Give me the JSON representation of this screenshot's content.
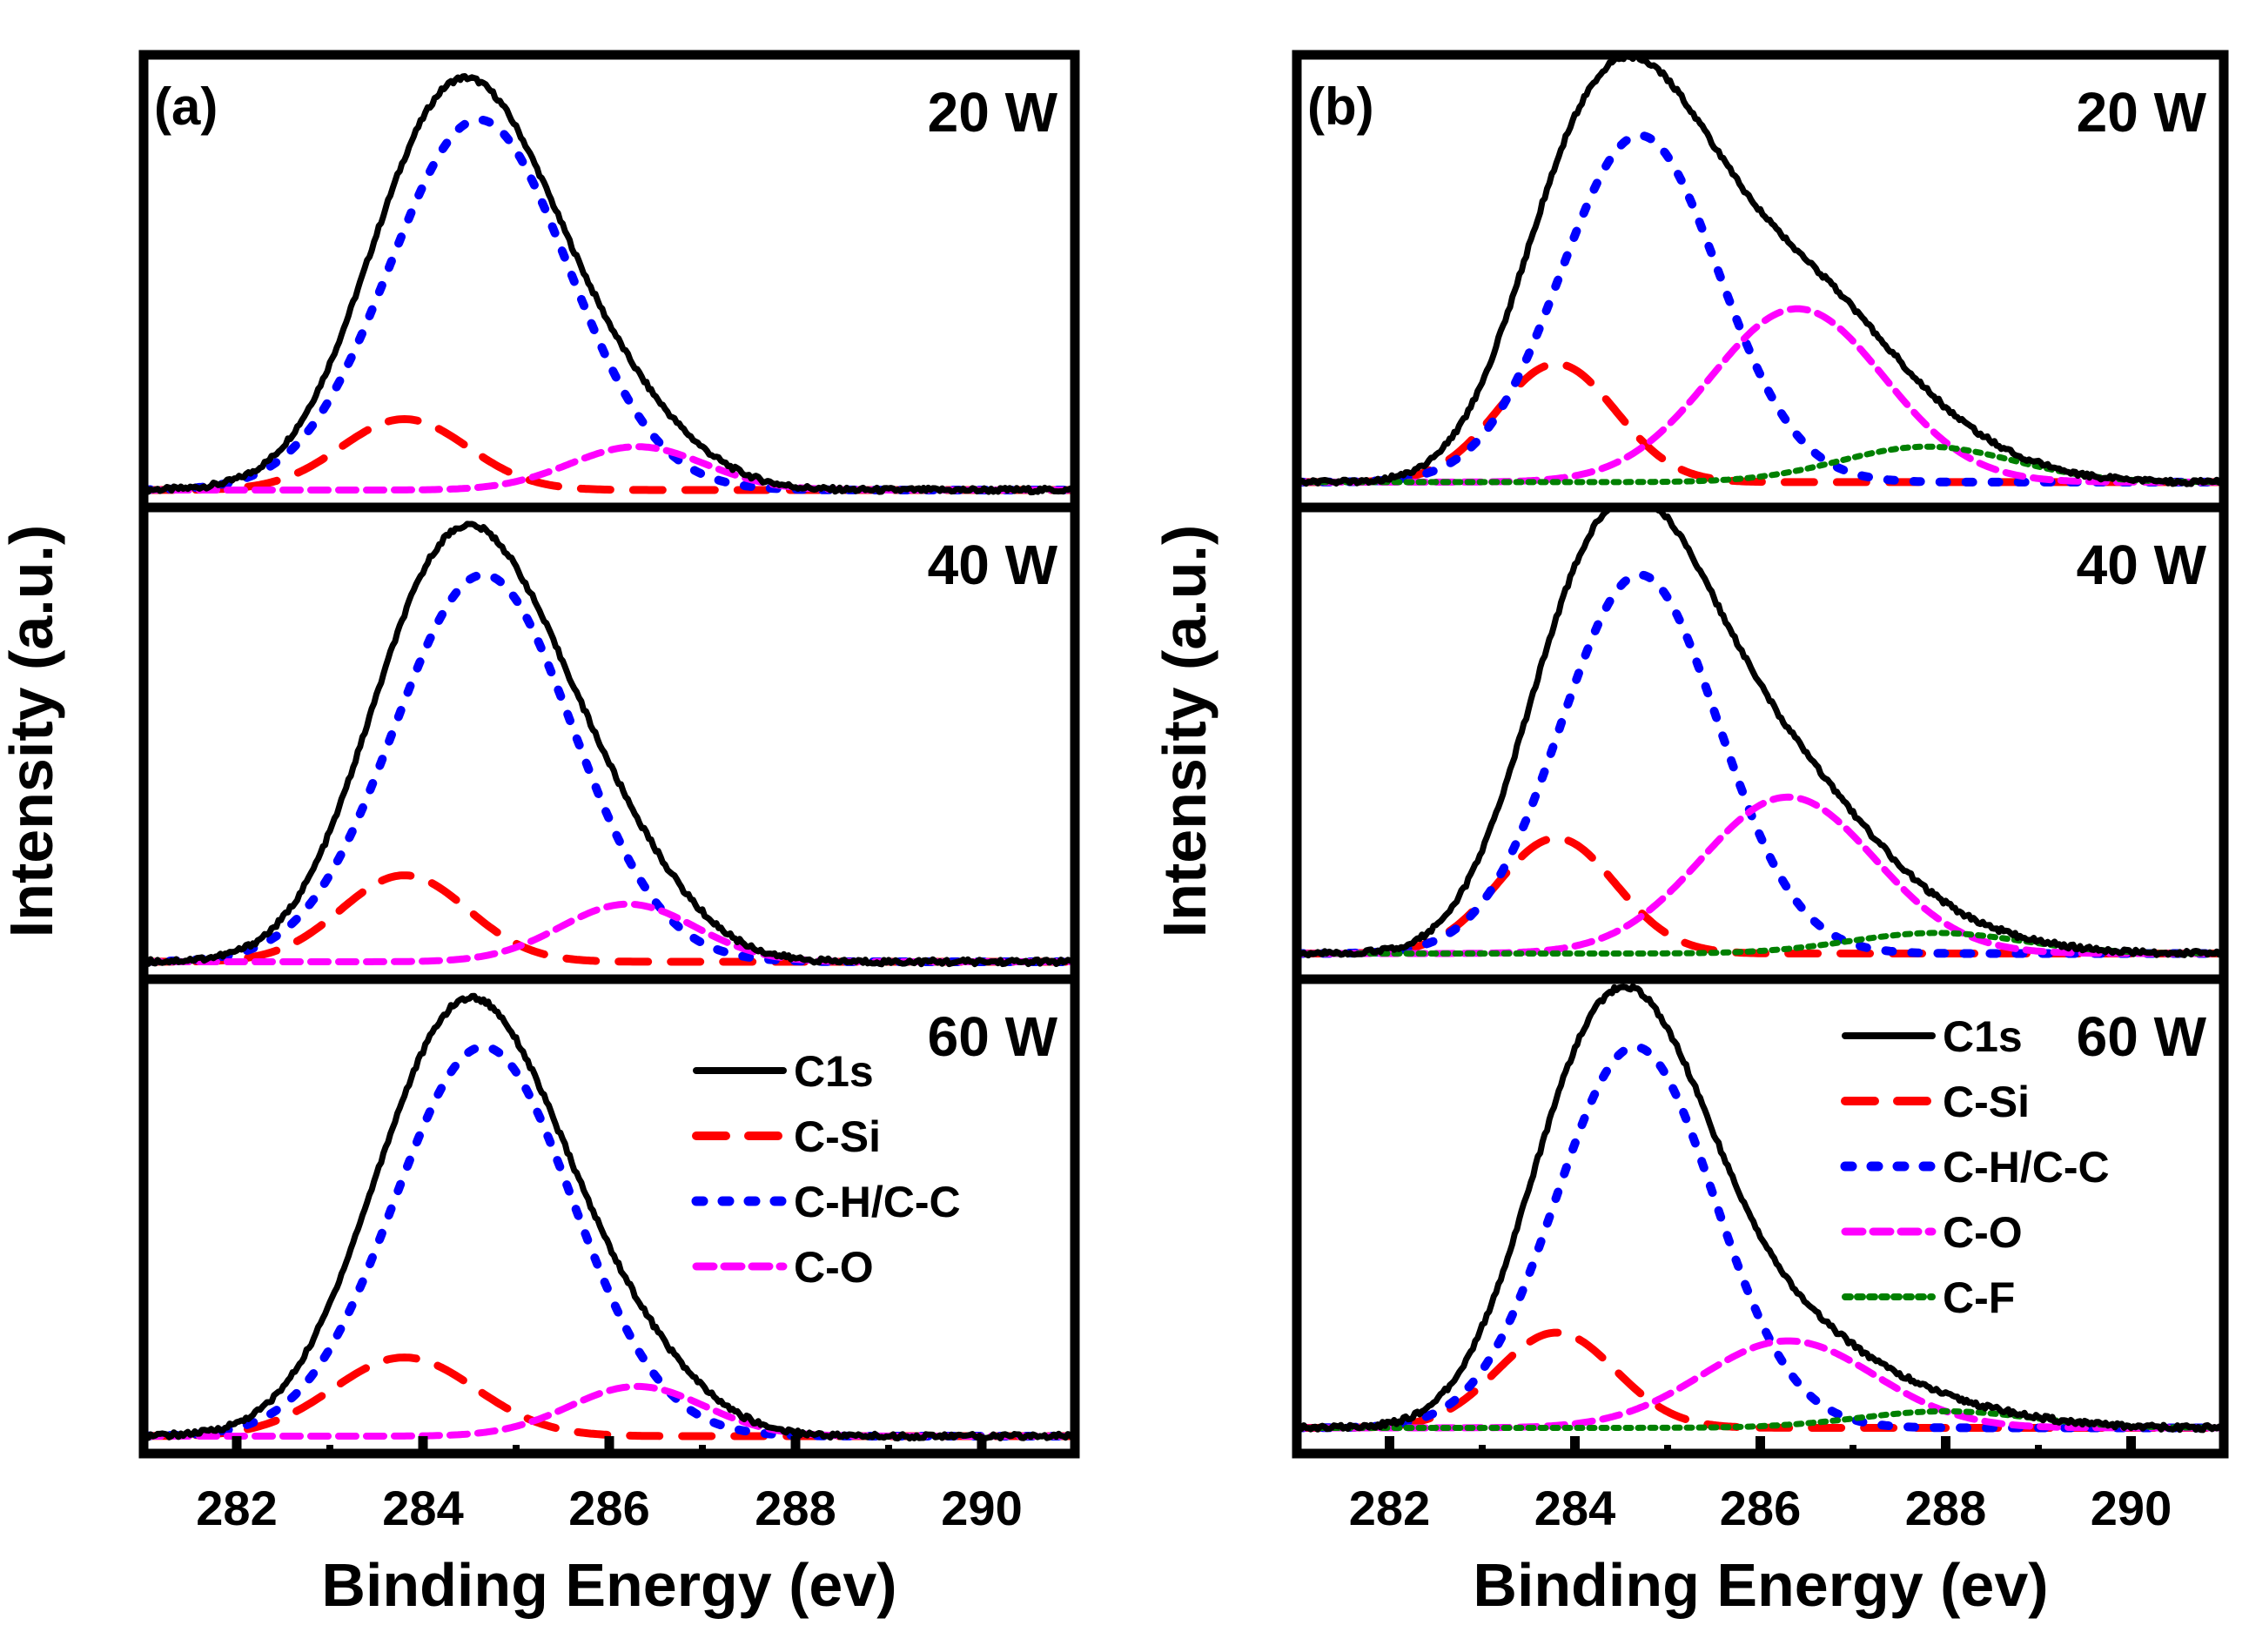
{
  "chart_data": [
    {
      "type": "line",
      "panel_label": "(a)",
      "xlabel": "Binding Energy (ev)",
      "ylabel": "Intensity (a.u.)",
      "xlim": [
        281,
        291
      ],
      "xticks": [
        "282",
        "284",
        "286",
        "288",
        "290"
      ],
      "x_minor_ticks": [
        283,
        285,
        287,
        289
      ],
      "ylim": [
        0,
        1.05
      ],
      "legend": {
        "location": "right, bottom sub-panel",
        "entries": [
          "C1s",
          "C-Si",
          "C-H/C-C",
          "C-O"
        ]
      },
      "subplots": [
        {
          "title": "20 W",
          "baseline": 0,
          "components": [
            {
              "name": "C-Si",
              "center": 283.8,
              "amplitude": 0.18,
              "fwhm": 1.6
            },
            {
              "name": "C-H/C-C",
              "center": 284.6,
              "amplitude": 0.94,
              "fwhm": 2.25
            },
            {
              "name": "C-O",
              "center": 286.3,
              "amplitude": 0.11,
              "fwhm": 1.7
            }
          ],
          "envelope_label": "C1s"
        },
        {
          "title": "40 W",
          "baseline": 0,
          "components": [
            {
              "name": "C-Si",
              "center": 283.8,
              "amplitude": 0.21,
              "fwhm": 1.6
            },
            {
              "name": "C-H/C-C",
              "center": 284.65,
              "amplitude": 0.94,
              "fwhm": 2.25
            },
            {
              "name": "C-O",
              "center": 286.2,
              "amplitude": 0.14,
              "fwhm": 1.7
            }
          ],
          "envelope_label": "C1s"
        },
        {
          "title": "60 W",
          "baseline": 0,
          "components": [
            {
              "name": "C-Si",
              "center": 283.8,
              "amplitude": 0.19,
              "fwhm": 1.8
            },
            {
              "name": "C-H/C-C",
              "center": 284.65,
              "amplitude": 0.94,
              "fwhm": 2.25
            },
            {
              "name": "C-O",
              "center": 286.3,
              "amplitude": 0.12,
              "fwhm": 1.7
            }
          ],
          "envelope_label": "C1s"
        }
      ]
    },
    {
      "type": "line",
      "panel_label": "(b)",
      "xlabel": "Binding Energy (ev)",
      "ylabel": "Intensity (a.u.)",
      "xlim": [
        281,
        291
      ],
      "xticks": [
        "282",
        "284",
        "286",
        "288",
        "290"
      ],
      "x_minor_ticks": [
        283,
        285,
        287,
        289
      ],
      "ylim": [
        0,
        1.05
      ],
      "legend": {
        "location": "right, bottom sub-panel",
        "entries": [
          "C1s",
          "C-Si",
          "C-H/C-C",
          "C-O",
          "C-F"
        ]
      },
      "subplots": [
        {
          "title": "20 W",
          "baseline": 0.02,
          "components": [
            {
              "name": "C-Si",
              "center": 283.8,
              "amplitude": 0.3,
              "fwhm": 1.5
            },
            {
              "name": "C-H/C-C",
              "center": 284.7,
              "amplitude": 0.88,
              "fwhm": 2.0
            },
            {
              "name": "C-O",
              "center": 286.4,
              "amplitude": 0.44,
              "fwhm": 2.2
            },
            {
              "name": "C-F",
              "center": 287.8,
              "amplitude": 0.09,
              "fwhm": 2.2
            }
          ],
          "envelope_label": "C1s"
        },
        {
          "title": "40 W",
          "baseline": 0.02,
          "components": [
            {
              "name": "C-Si",
              "center": 283.8,
              "amplitude": 0.28,
              "fwhm": 1.5
            },
            {
              "name": "C-H/C-C",
              "center": 284.7,
              "amplitude": 0.92,
              "fwhm": 2.0
            },
            {
              "name": "C-O",
              "center": 286.3,
              "amplitude": 0.38,
              "fwhm": 2.2
            },
            {
              "name": "C-F",
              "center": 287.9,
              "amplitude": 0.05,
              "fwhm": 2.2
            }
          ],
          "envelope_label": "C1s"
        },
        {
          "title": "60 W",
          "baseline": 0.02,
          "components": [
            {
              "name": "C-Si",
              "center": 283.8,
              "amplitude": 0.23,
              "fwhm": 1.5
            },
            {
              "name": "C-H/C-C",
              "center": 284.65,
              "amplitude": 0.92,
              "fwhm": 2.0
            },
            {
              "name": "C-O",
              "center": 286.3,
              "amplitude": 0.21,
              "fwhm": 2.2
            },
            {
              "name": "C-F",
              "center": 288.0,
              "amplitude": 0.04,
              "fwhm": 2.2
            }
          ],
          "envelope_label": "C1s"
        }
      ]
    }
  ],
  "series_styles": {
    "C1s": {
      "color": "#000000",
      "dash": "solid"
    },
    "C-Si": {
      "color": "#ff0000",
      "dash": "longdash"
    },
    "C-H/C-C": {
      "color": "#0000ff",
      "dash": "dot"
    },
    "C-O": {
      "color": "#ff00ff",
      "dash": "dash"
    },
    "C-F": {
      "color": "#008000",
      "dash": "densedot"
    }
  }
}
